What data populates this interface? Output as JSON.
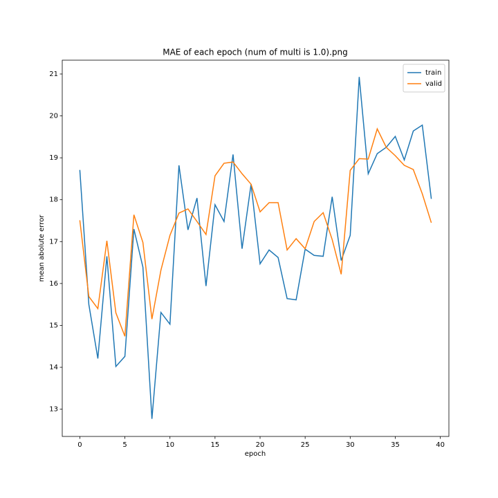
{
  "chart_data": {
    "type": "line",
    "title": "MAE of each epoch (num of multi is 1.0).png",
    "xlabel": "epoch",
    "ylabel": "mean abolute error",
    "x": [
      0,
      1,
      2,
      3,
      4,
      5,
      6,
      7,
      8,
      9,
      10,
      11,
      12,
      13,
      14,
      15,
      16,
      17,
      18,
      19,
      20,
      21,
      22,
      23,
      24,
      25,
      26,
      27,
      28,
      29,
      30,
      31,
      32,
      33,
      34,
      35,
      36,
      37,
      38,
      39
    ],
    "series": [
      {
        "name": "train",
        "color": "#1f77b4",
        "values": [
          18.71,
          15.5,
          14.21,
          16.65,
          14.02,
          14.26,
          17.3,
          16.39,
          12.77,
          15.31,
          15.03,
          18.82,
          17.28,
          18.04,
          15.94,
          17.88,
          17.48,
          19.08,
          16.83,
          18.37,
          16.47,
          16.8,
          16.62,
          15.64,
          15.61,
          16.82,
          16.67,
          16.65,
          18.07,
          16.55,
          17.15,
          20.93,
          18.62,
          19.1,
          19.25,
          19.51,
          18.95,
          19.64,
          19.78,
          18.02
        ]
      },
      {
        "name": "valid",
        "color": "#ff7f0e",
        "values": [
          17.51,
          15.69,
          15.4,
          17.02,
          15.3,
          14.74,
          17.64,
          16.98,
          15.15,
          16.32,
          17.15,
          17.68,
          17.78,
          17.48,
          17.17,
          18.57,
          18.87,
          18.9,
          18.62,
          18.37,
          17.71,
          17.93,
          17.93,
          16.8,
          17.07,
          16.83,
          17.48,
          17.69,
          17.05,
          16.22,
          18.7,
          18.98,
          18.97,
          19.69,
          19.25,
          19.05,
          18.82,
          18.72,
          18.14,
          17.45
        ]
      }
    ],
    "xlim": [
      -1.95,
      40.95
    ],
    "xticks": [
      0,
      5,
      10,
      15,
      20,
      25,
      30,
      35,
      40
    ],
    "ylim": [
      12.35,
      21.33
    ],
    "yticks": [
      13,
      14,
      15,
      16,
      17,
      18,
      19,
      20,
      21
    ],
    "grid": false,
    "legend": "upper right"
  }
}
